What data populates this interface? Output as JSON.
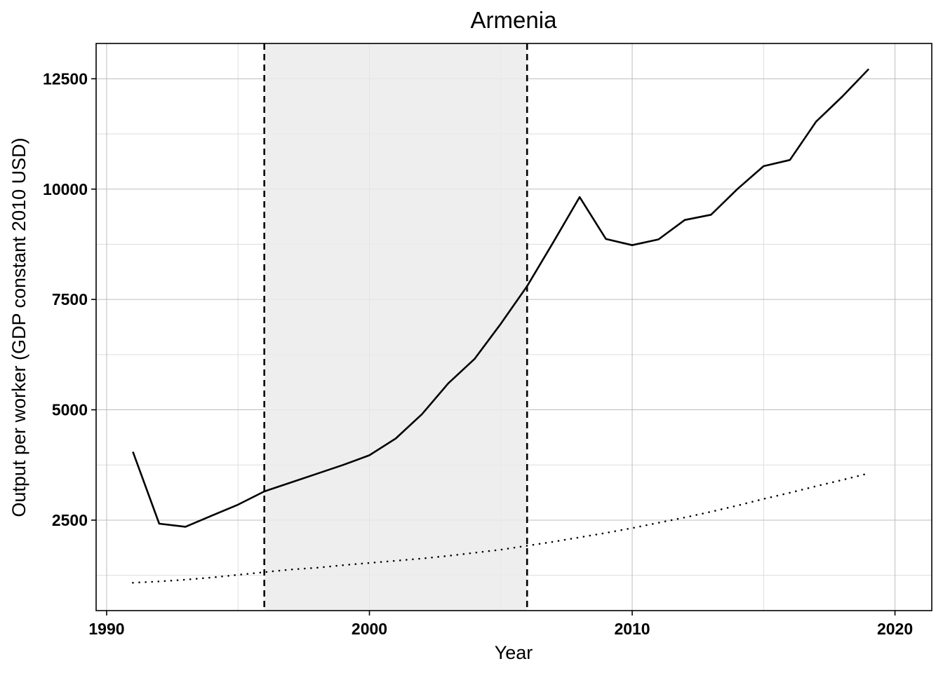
{
  "chart_data": {
    "type": "line",
    "title": "Armenia",
    "xlabel": "Year",
    "ylabel": "Output per worker (GDP constant 2010 USD)",
    "xlim": [
      1989.6,
      2021.4
    ],
    "ylim": [
      450,
      13300
    ],
    "x_ticks": [
      1990,
      2000,
      2010,
      2020
    ],
    "x_tick_labels": [
      "1990",
      "2000",
      "2010",
      "2020"
    ],
    "y_ticks": [
      2500,
      5000,
      7500,
      10000,
      12500
    ],
    "y_tick_labels": [
      "2500",
      "5000",
      "7500",
      "10000",
      "12500"
    ],
    "grid": true,
    "legend": "none",
    "shaded_period": {
      "start": 1996,
      "end": 2006,
      "color": "#ebebeb",
      "border_style": "dashed"
    },
    "series": [
      {
        "style": "solid",
        "color": "#000000",
        "x": [
          1991,
          1992,
          1993,
          1994,
          1995,
          1996,
          1997,
          1998,
          1999,
          2000,
          2001,
          2002,
          2003,
          2004,
          2005,
          2006,
          2007,
          2008,
          2009,
          2010,
          2011,
          2012,
          2013,
          2014,
          2015,
          2016,
          2017,
          2018,
          2019
        ],
        "y": [
          4050,
          2420,
          2350,
          2600,
          2850,
          3150,
          3350,
          3550,
          3750,
          3970,
          4350,
          4900,
          5600,
          6150,
          6950,
          7800,
          8800,
          9820,
          8870,
          8730,
          8860,
          9300,
          9420,
          10000,
          10520,
          10660,
          11530,
          12100,
          12720
        ]
      },
      {
        "style": "dotted",
        "color": "#000000",
        "x": [
          1991,
          1992,
          1993,
          1994,
          1995,
          1996,
          1997,
          1998,
          1999,
          2000,
          2001,
          2002,
          2003,
          2004,
          2005,
          2006,
          2007,
          2008,
          2009,
          2010,
          2011,
          2012,
          2013,
          2014,
          2015,
          2016,
          2017,
          2018,
          2019
        ],
        "y": [
          1080,
          1110,
          1150,
          1200,
          1260,
          1320,
          1380,
          1420,
          1480,
          1530,
          1580,
          1630,
          1690,
          1760,
          1830,
          1920,
          2010,
          2110,
          2210,
          2320,
          2440,
          2560,
          2690,
          2830,
          2980,
          3120,
          3270,
          3410,
          3560
        ]
      }
    ]
  }
}
